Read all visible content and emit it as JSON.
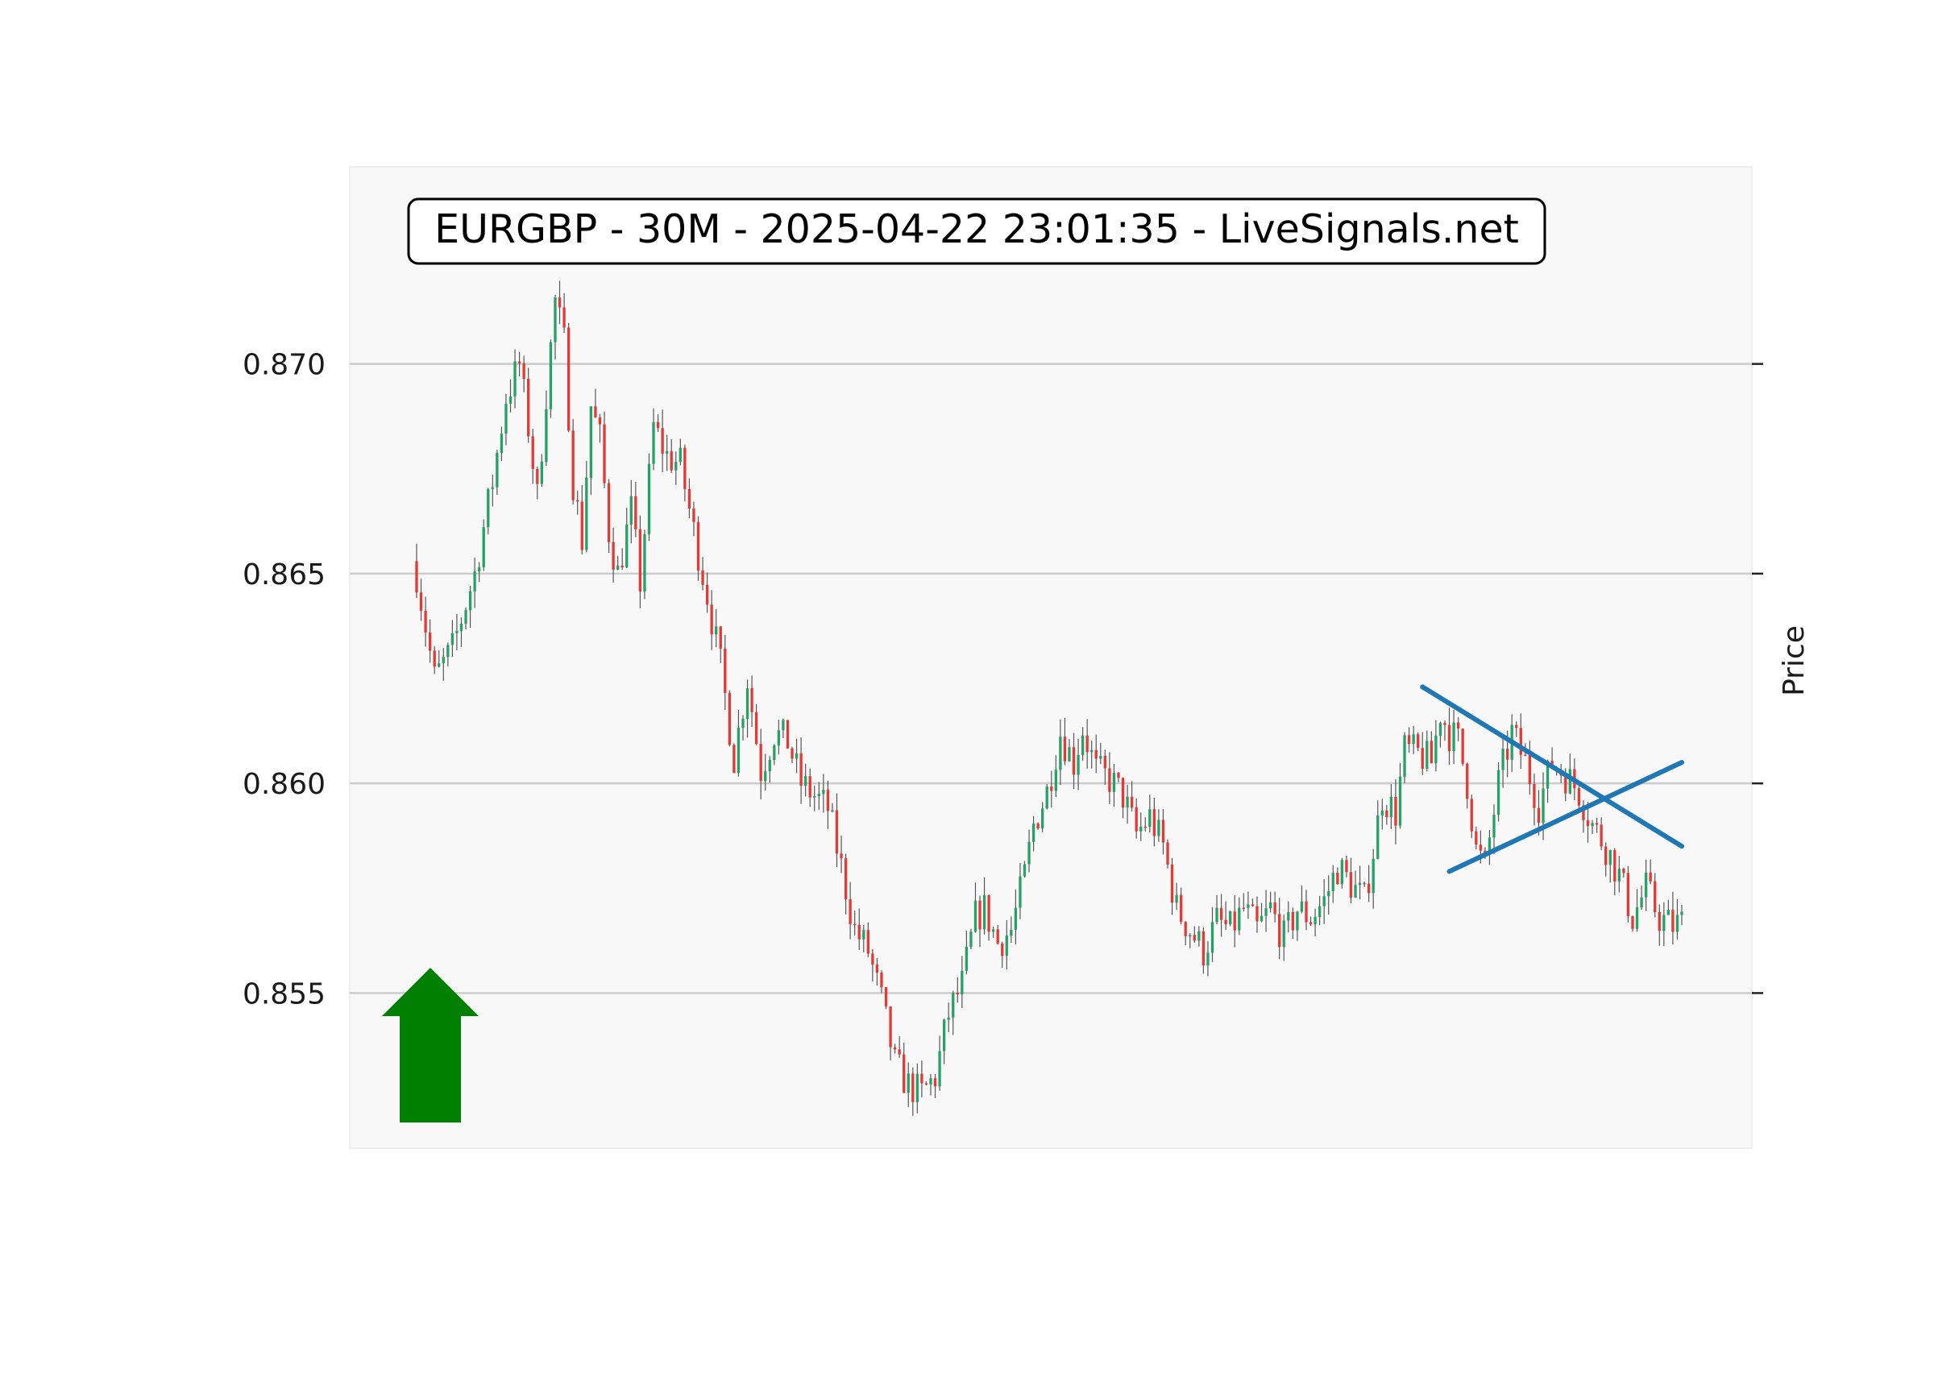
{
  "chart_data": {
    "type": "candlestick",
    "title": "EURGBP - 30M - 2025-04-22 23:01:35 - LiveSignals.net",
    "ylabel": "Price",
    "xlabel": "",
    "ylim": [
      0.8513,
      0.8747
    ],
    "yticks": [
      {
        "value": 0.87,
        "label": "0.870"
      },
      {
        "value": 0.865,
        "label": "0.865"
      },
      {
        "value": 0.86,
        "label": "0.860"
      },
      {
        "value": 0.855,
        "label": "0.855"
      }
    ],
    "grid": "horizontal",
    "colors": {
      "up": "#26a269",
      "down": "#e53935",
      "wick": "#555555",
      "pattern": "#1f77b4",
      "arrow": "#008000",
      "plot_bg": "#f8f8f8",
      "grid": "#cccccc"
    },
    "signal": {
      "direction": "up",
      "icon": "up-arrow-icon"
    },
    "close_path": [
      [
        0,
        0.865
      ],
      [
        4,
        0.8625
      ],
      [
        8,
        0.8632
      ],
      [
        13,
        0.865
      ],
      [
        17,
        0.8672
      ],
      [
        20,
        0.8692
      ],
      [
        23,
        0.87
      ],
      [
        25,
        0.8685
      ],
      [
        27,
        0.8668
      ],
      [
        29,
        0.8693
      ],
      [
        31,
        0.8715
      ],
      [
        33,
        0.8705
      ],
      [
        35,
        0.8672
      ],
      [
        37,
        0.8658
      ],
      [
        39,
        0.869
      ],
      [
        41,
        0.8682
      ],
      [
        43,
        0.866
      ],
      [
        45,
        0.865
      ],
      [
        48,
        0.8665
      ],
      [
        50,
        0.8648
      ],
      [
        53,
        0.8685
      ],
      [
        56,
        0.8678
      ],
      [
        59,
        0.8676
      ],
      [
        62,
        0.866
      ],
      [
        65,
        0.8645
      ],
      [
        68,
        0.8628
      ],
      [
        71,
        0.8606
      ],
      [
        74,
        0.8625
      ],
      [
        77,
        0.8603
      ],
      [
        80,
        0.8612
      ],
      [
        83,
        0.861
      ],
      [
        86,
        0.86
      ],
      [
        89,
        0.8597
      ],
      [
        92,
        0.8594
      ],
      [
        95,
        0.858
      ],
      [
        98,
        0.8565
      ],
      [
        101,
        0.856
      ],
      [
        104,
        0.8548
      ],
      [
        107,
        0.8533
      ],
      [
        110,
        0.8528
      ],
      [
        113,
        0.8526
      ],
      [
        116,
        0.853
      ],
      [
        119,
        0.8545
      ],
      [
        122,
        0.8552
      ],
      [
        125,
        0.8568
      ],
      [
        127,
        0.857
      ],
      [
        130,
        0.8562
      ],
      [
        133,
        0.8565
      ],
      [
        136,
        0.8578
      ],
      [
        138,
        0.859
      ],
      [
        141,
        0.8598
      ],
      [
        144,
        0.8612
      ],
      [
        147,
        0.8605
      ],
      [
        149,
        0.8613
      ],
      [
        152,
        0.8603
      ],
      [
        155,
        0.8601
      ],
      [
        158,
        0.8597
      ],
      [
        161,
        0.8588
      ],
      [
        164,
        0.8592
      ],
      [
        167,
        0.8585
      ],
      [
        170,
        0.857
      ],
      [
        173,
        0.8565
      ],
      [
        176,
        0.856
      ],
      [
        179,
        0.8567
      ],
      [
        182,
        0.8565
      ],
      [
        185,
        0.857
      ],
      [
        188,
        0.8565
      ],
      [
        191,
        0.857
      ],
      [
        194,
        0.8563
      ],
      [
        197,
        0.857
      ],
      [
        200,
        0.8568
      ],
      [
        203,
        0.8572
      ],
      [
        206,
        0.858
      ],
      [
        209,
        0.8576
      ],
      [
        212,
        0.8572
      ],
      [
        214,
        0.8584
      ],
      [
        216,
        0.8597
      ],
      [
        219,
        0.8593
      ],
      [
        221,
        0.8608
      ],
      [
        224,
        0.8607
      ],
      [
        227,
        0.8605
      ],
      [
        229,
        0.8617
      ],
      [
        231,
        0.8612
      ],
      [
        233,
        0.861
      ],
      [
        235,
        0.86
      ],
      [
        237,
        0.8584
      ],
      [
        239,
        0.858
      ],
      [
        242,
        0.86
      ],
      [
        245,
        0.8612
      ],
      [
        248,
        0.8605
      ],
      [
        251,
        0.8595
      ],
      [
        254,
        0.8605
      ],
      [
        257,
        0.8602
      ],
      [
        260,
        0.8598
      ],
      [
        263,
        0.859
      ],
      [
        266,
        0.8585
      ],
      [
        269,
        0.8578
      ],
      [
        272,
        0.8568
      ],
      [
        275,
        0.8575
      ],
      [
        278,
        0.8568
      ],
      [
        281,
        0.8566
      ],
      [
        283,
        0.8567
      ]
    ],
    "candles": 284,
    "pattern_lines": [
      {
        "name": "upper-trendline",
        "from": [
          225,
          0.8623
        ],
        "to": [
          283,
          0.8585
        ]
      },
      {
        "name": "lower-trendline",
        "from": [
          231,
          0.8579
        ],
        "to": [
          283,
          0.8605
        ]
      }
    ]
  }
}
